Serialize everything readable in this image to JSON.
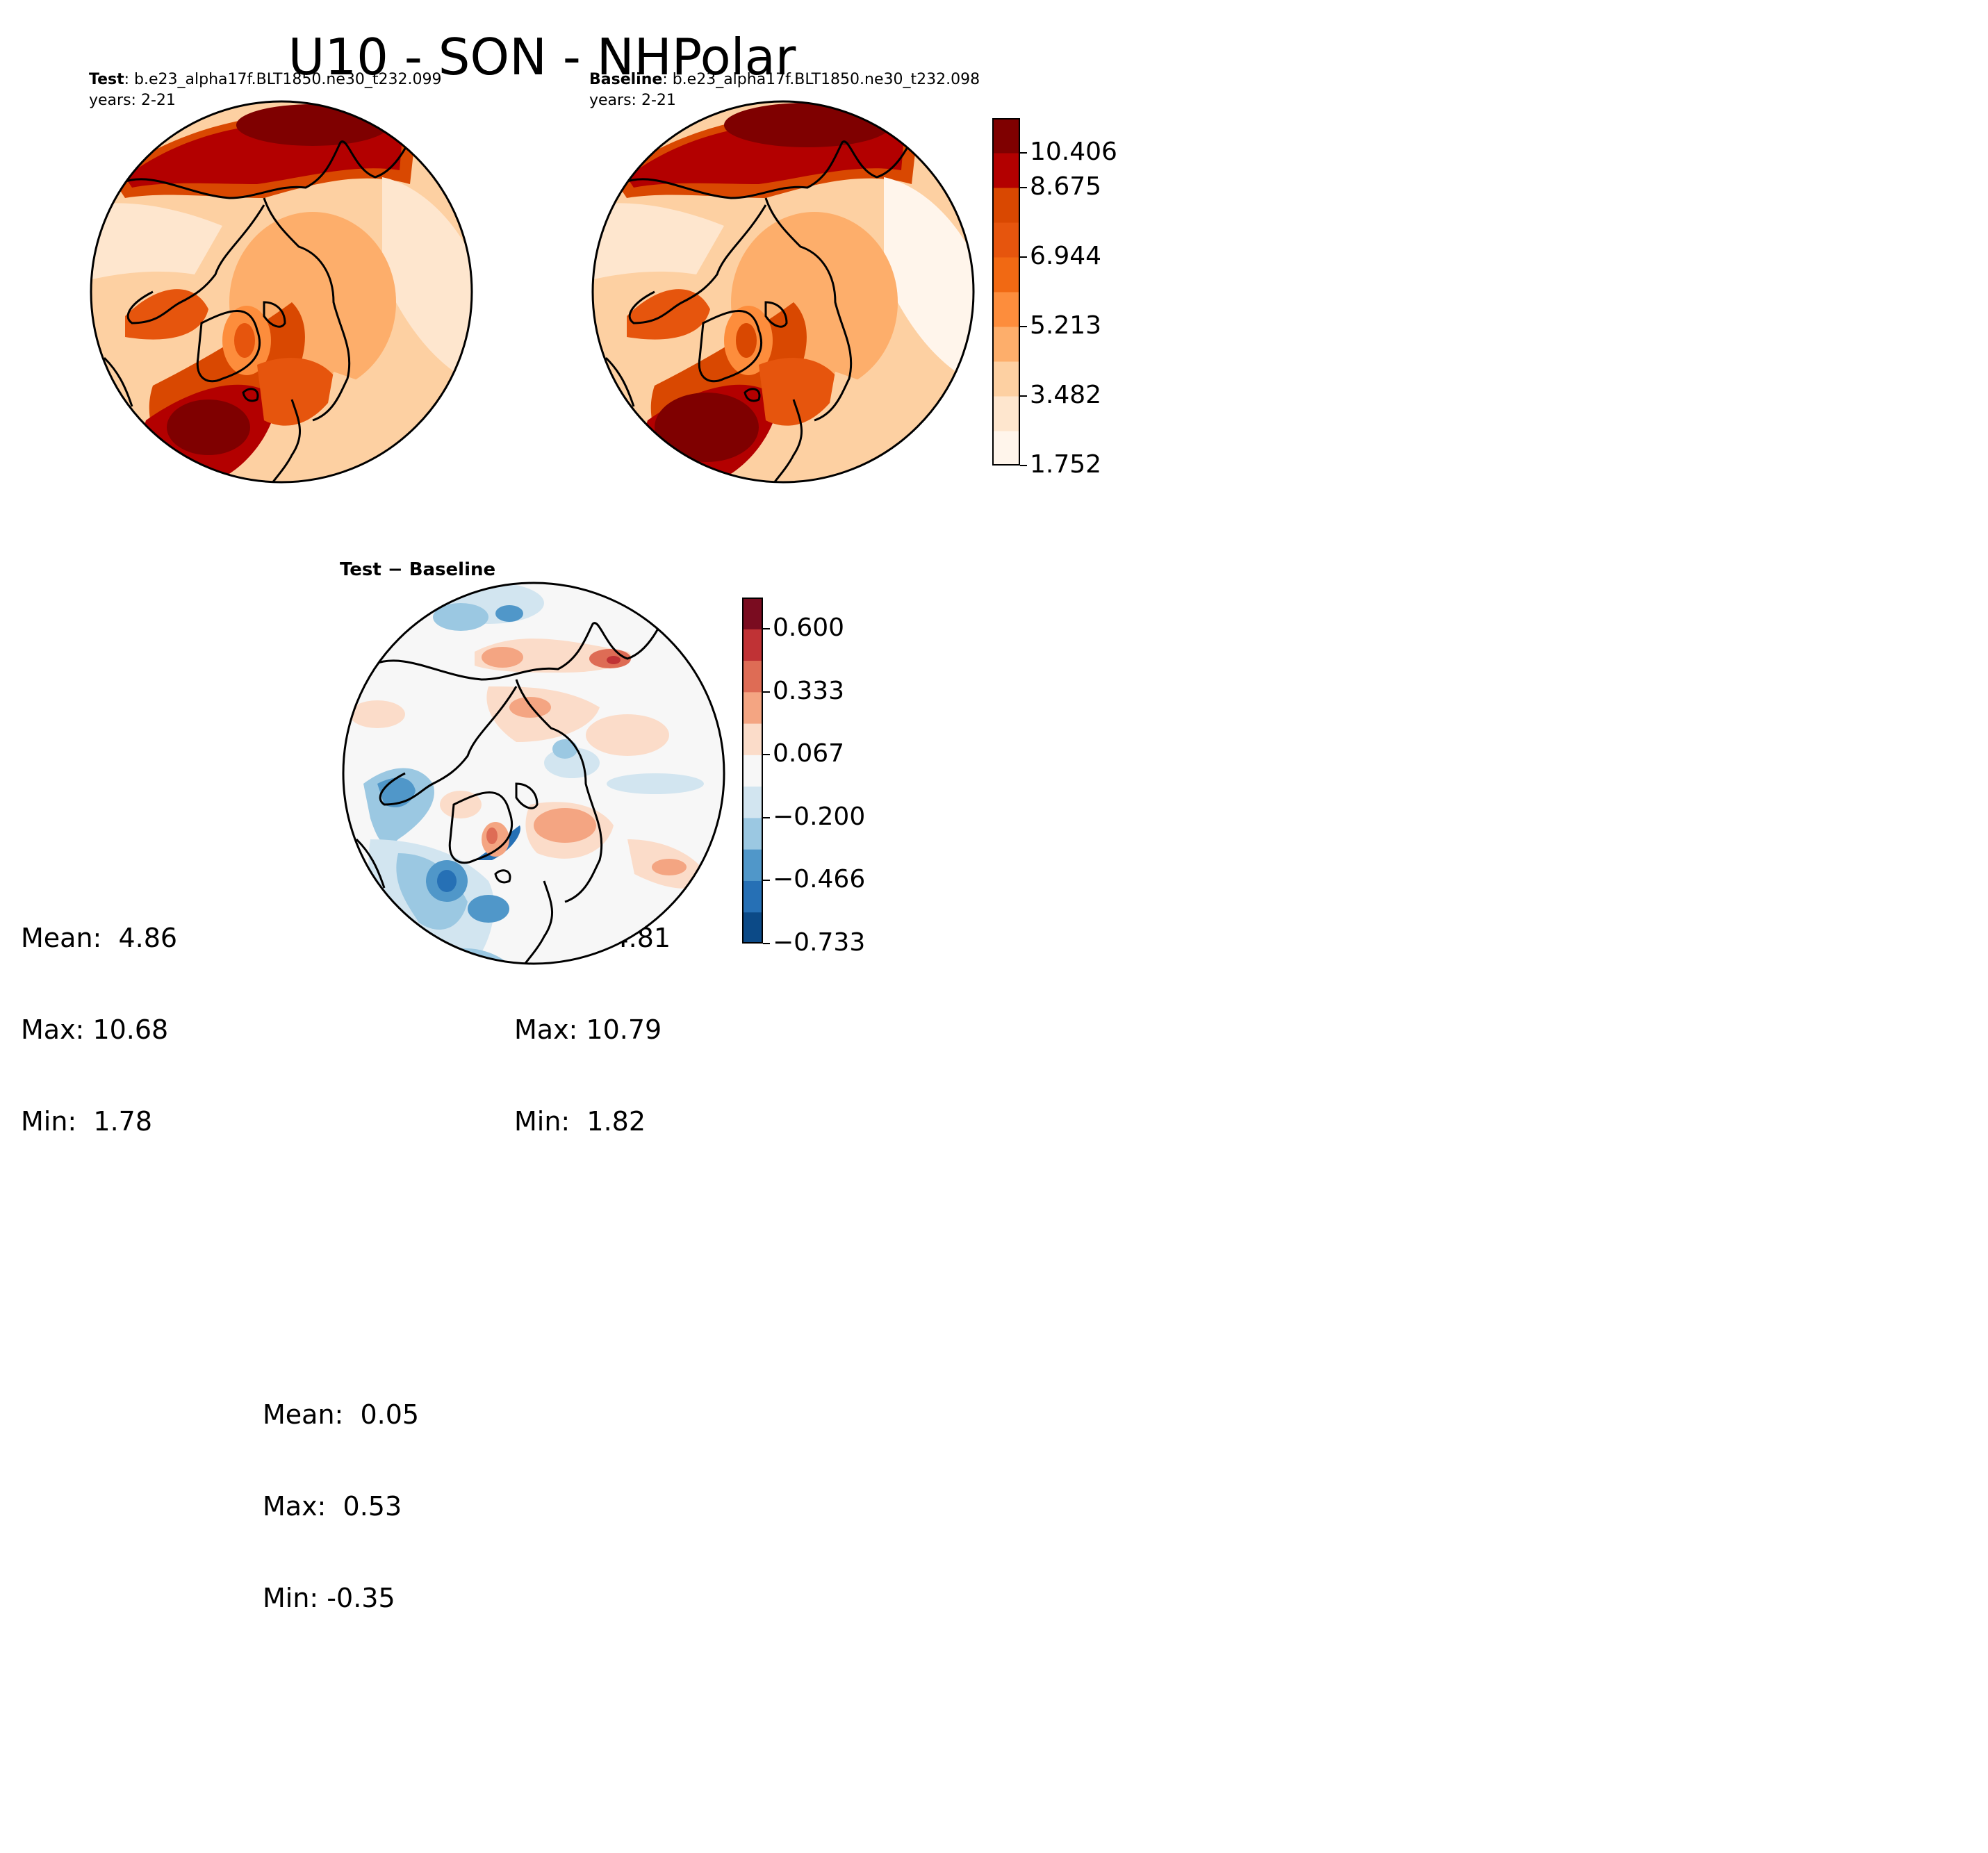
{
  "figure": {
    "title": "U10 - SON - NHPolar"
  },
  "panels": [
    {
      "id": "test",
      "label_bold": "Test",
      "case": ": b.e23_alpha17f.BLT1850.ne30_t232.099",
      "years": "years: 2-21",
      "stats": {
        "mean": "Mean:  4.86",
        "max": "Max: 10.68",
        "min": "Min:  1.78"
      }
    },
    {
      "id": "baseline",
      "label_bold": "Baseline",
      "case": ": b.e23_alpha17f.BLT1850.ne30_t232.098",
      "years": "years: 2-21",
      "stats": {
        "mean": "Mean:  4.81",
        "max": "Max: 10.79",
        "min": "Min:  1.82"
      }
    },
    {
      "id": "diff",
      "label_bold": "Test − Baseline",
      "stats": {
        "mean": "Mean:  0.05",
        "max": "Max:  0.53",
        "min": "Min: -0.35"
      }
    }
  ],
  "colorbars": {
    "absolute": {
      "ticks": [
        "1.752",
        "3.482",
        "5.213",
        "6.944",
        "8.675",
        "10.406"
      ],
      "colors": [
        "#fff5eb",
        "#fee6ce",
        "#fdd0a2",
        "#fdae6b",
        "#fd8d3c",
        "#f16913",
        "#e6550d",
        "#d94801",
        "#b30000",
        "#7f0000"
      ]
    },
    "difference": {
      "ticks": [
        "−0.733",
        "−0.466",
        "−0.200",
        "0.067",
        "0.333",
        "0.600"
      ],
      "colors": [
        "#0c4a87",
        "#2670b5",
        "#5097c9",
        "#9bc8e2",
        "#d2e5f0",
        "#f7f7f7",
        "#fbdcc9",
        "#f4a582",
        "#de6c55",
        "#c03235",
        "#7a0c20"
      ]
    }
  }
}
